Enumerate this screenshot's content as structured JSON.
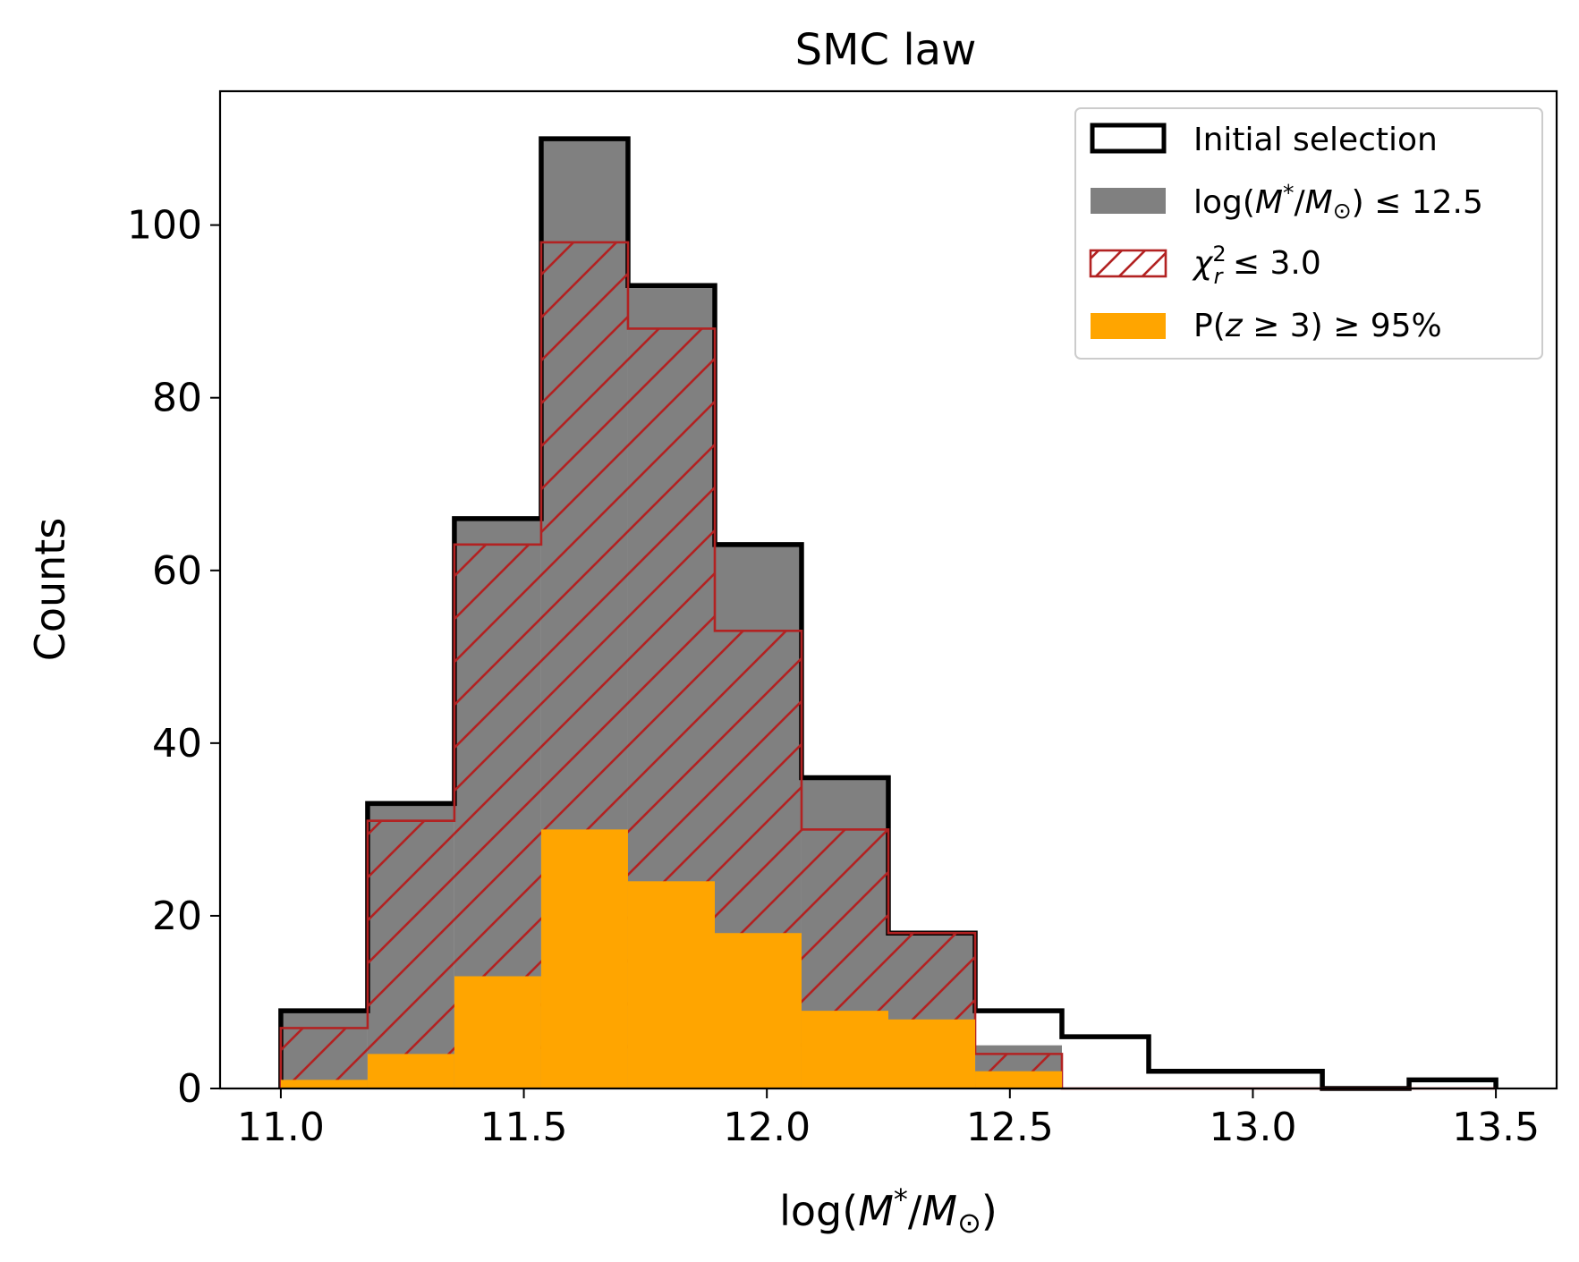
{
  "chart_data": {
    "type": "histogram",
    "title": "SMC law",
    "xlabel": "log(M*/M⊙)",
    "ylabel": "Counts",
    "xlim": [
      10.875,
      13.625
    ],
    "ylim": [
      0,
      115.5
    ],
    "xticks": [
      11.0,
      11.5,
      12.0,
      12.5,
      13.0,
      13.5
    ],
    "xtick_labels": [
      "11.0",
      "11.5",
      "12.0",
      "12.5",
      "13.0",
      "13.5"
    ],
    "yticks": [
      0,
      20,
      40,
      60,
      80,
      100
    ],
    "ytick_labels": [
      "0",
      "20",
      "40",
      "60",
      "80",
      "100"
    ],
    "bin_edges": [
      11.0,
      11.1786,
      11.3571,
      11.5357,
      11.7143,
      11.8929,
      12.0714,
      12.25,
      12.4286,
      12.6071,
      12.7857,
      12.9643,
      13.1429,
      13.3214,
      13.5
    ],
    "legend_position": "top-right",
    "series": [
      {
        "name": "Initial selection",
        "style": "step-outline",
        "color": "#000000",
        "values": [
          9,
          33,
          66,
          110,
          93,
          63,
          36,
          18,
          9,
          6,
          2,
          2,
          0,
          1
        ]
      },
      {
        "name": "log(M*/M⊙) ≤ 12.5",
        "style": "filled",
        "color": "#808080",
        "values": [
          9,
          33,
          66,
          110,
          93,
          63,
          36,
          18,
          5,
          0,
          0,
          0,
          0,
          0
        ]
      },
      {
        "name": "χ²r ≤ 3.0",
        "style": "hatched-outline",
        "color": "#b22222",
        "values": [
          7,
          31,
          63,
          98,
          88,
          53,
          30,
          18,
          4,
          0,
          0,
          0,
          0,
          0
        ]
      },
      {
        "name": "P(z ≥ 3) ≥ 95%",
        "style": "filled",
        "color": "#ffa500",
        "values": [
          1,
          4,
          13,
          30,
          24,
          18,
          9,
          8,
          2,
          0,
          0,
          0,
          0,
          0
        ]
      }
    ]
  },
  "legend": {
    "initial": "Initial selection",
    "mass_prefix": "log(",
    "mass_M": "M",
    "mass_star": "*",
    "mass_slash": "/",
    "mass_sun": "⊙",
    "mass_suffix": ") ≤ 12.5",
    "chi_symbol": "χ",
    "chi_sup": "2",
    "chi_sub": "r",
    "chi_suffix": " ≤ 3.0",
    "pz_prefix": "P(",
    "pz_z": "z",
    "pz_suffix": " ≥ 3) ≥ 95%"
  },
  "labels": {
    "title": "SMC law",
    "ylabel": "Counts",
    "x_prefix": "log(",
    "x_M": "M",
    "x_star": "*",
    "x_slash": "/",
    "x_sun": "⊙",
    "x_suffix": ")"
  }
}
